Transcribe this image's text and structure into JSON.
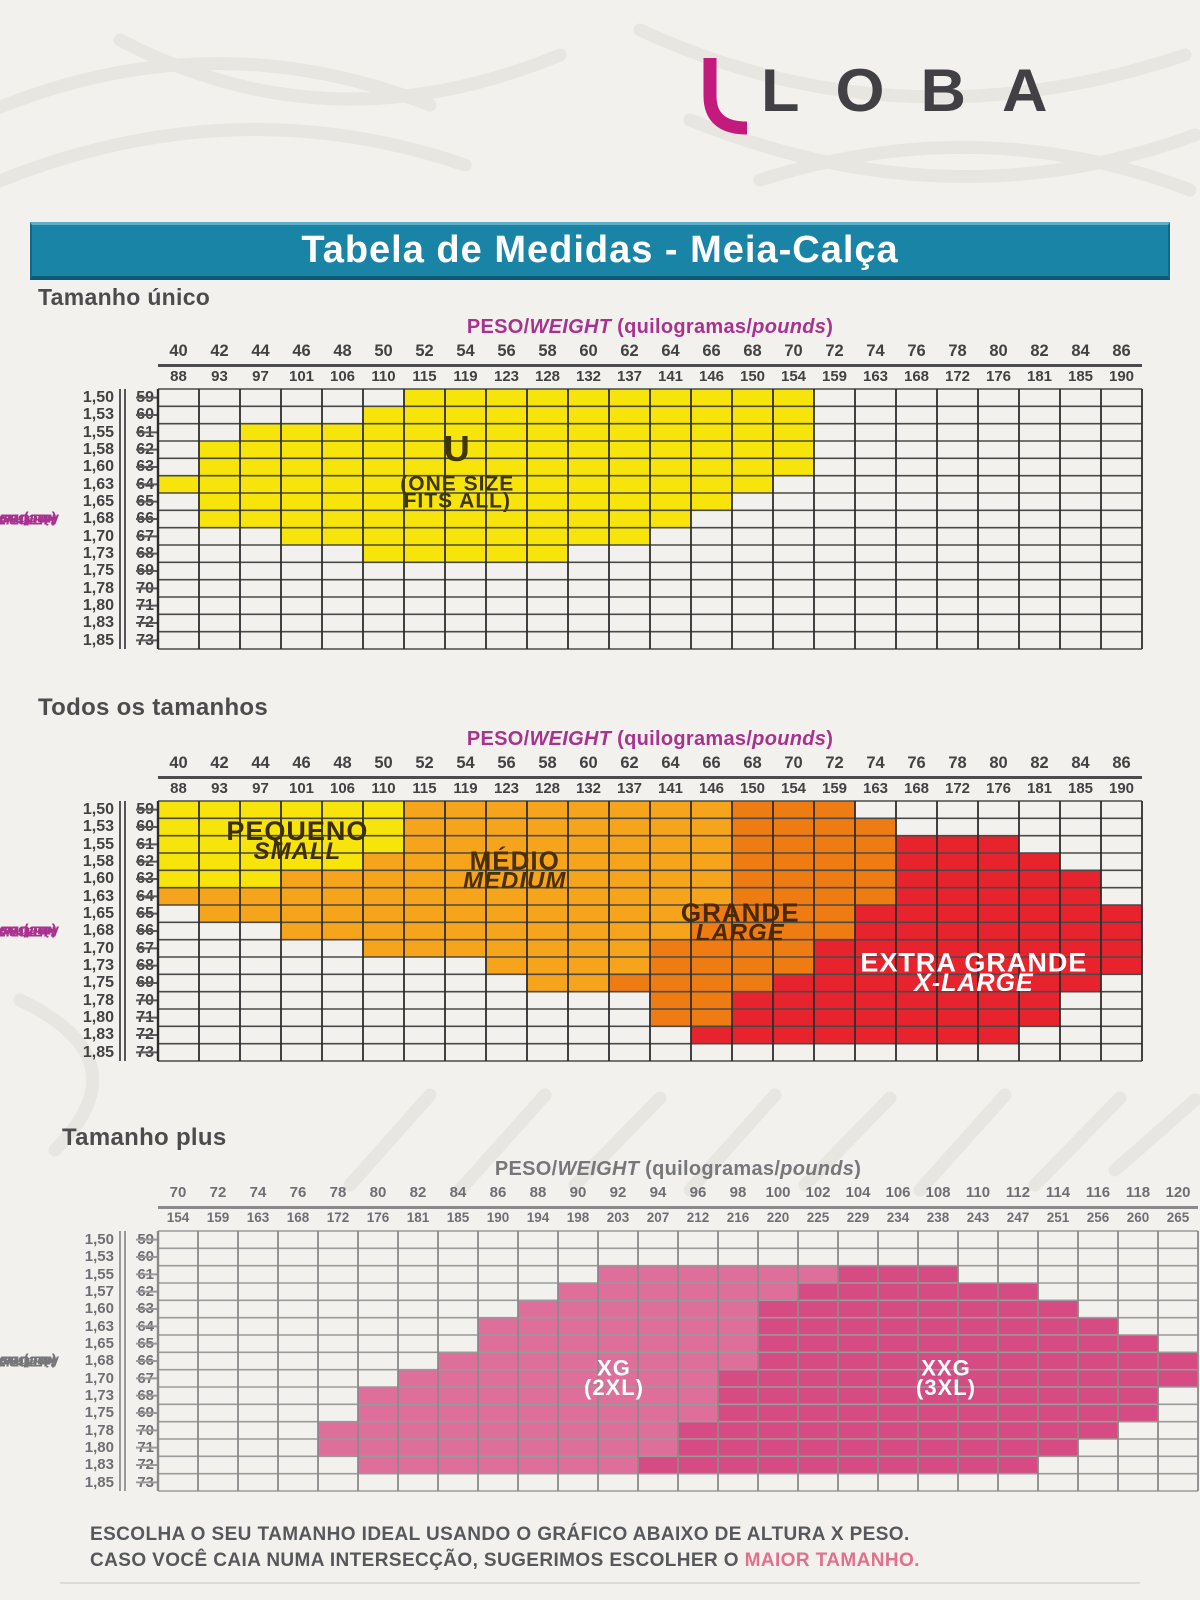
{
  "logo": {
    "text": "LOBA",
    "text_color": "#414045",
    "swoosh_color": "#c4197d"
  },
  "title_bar": {
    "text": "Tabela de Medidas - Meia-Calça",
    "bg": "#1a84a6",
    "text_color": "#ffffff"
  },
  "footer": {
    "line1": "ESCOLHA O SEU TAMANHO IDEAL  USANDO O GRÁFICO ABAIXO DE ALTURA X PESO.",
    "line2_prefix": "CASO VOCÊ CAIA NUMA INTERSECÇÃO, SUGERIMOS ESCOLHER O ",
    "line2_accent": "MAIOR TAMANHO.",
    "accent_color": "#e0708c"
  },
  "chart_data": [
    {
      "type": "heatmap",
      "section_title": "Tamanho único",
      "weight_title_parts": [
        {
          "text": "PESO/"
        },
        {
          "text": "WEIGHT",
          "italic": true
        },
        {
          "text": " (quilogramas/"
        },
        {
          "text": "pounds",
          "italic": true
        },
        {
          "text": ")"
        }
      ],
      "height_title_parts": [
        {
          "text": "ALTURA/"
        },
        {
          "text": "HEIGHT",
          "italic": true
        },
        {
          "text": " (metros/"
        },
        {
          "text": "inches",
          "italic": true
        },
        {
          "text": ")"
        }
      ],
      "kg": [
        40,
        42,
        44,
        46,
        48,
        50,
        52,
        54,
        56,
        58,
        60,
        62,
        64,
        66,
        68,
        70,
        72,
        74,
        76,
        78,
        80,
        82,
        84,
        86
      ],
      "lbs": [
        88,
        93,
        97,
        101,
        106,
        110,
        115,
        119,
        123,
        128,
        132,
        137,
        141,
        146,
        150,
        154,
        159,
        163,
        168,
        172,
        176,
        181,
        185,
        190
      ],
      "meters": [
        "1,50",
        "1,53",
        "1,55",
        "1,58",
        "1,60",
        "1,63",
        "1,65",
        "1,68",
        "1,70",
        "1,73",
        "1,75",
        "1,78",
        "1,80",
        "1,83",
        "1,85"
      ],
      "inches": [
        59,
        60,
        61,
        62,
        63,
        64,
        65,
        66,
        67,
        68,
        69,
        70,
        71,
        72,
        73
      ],
      "axis_title_color": "#a8338f",
      "tick_color": "#424242",
      "grid_h_color": "#4a4a4a",
      "grid_v_color": "#2e2e2e",
      "stub_color": "#5a5a5a",
      "regions": [
        {
          "name": "one-size-u",
          "color": "#f7e40b",
          "cells": {
            "59": [
              6,
              15
            ],
            "60": [
              5,
              15
            ],
            "61": [
              2,
              15
            ],
            "62": [
              1,
              15
            ],
            "63": [
              1,
              15
            ],
            "64": [
              0,
              14
            ],
            "65": [
              1,
              13
            ],
            "66": [
              1,
              12
            ],
            "67": [
              3,
              11
            ],
            "68": [
              5,
              9
            ]
          },
          "label": {
            "color": "#3f3600",
            "col": 7.3,
            "rows": [
              4.15,
              5.85,
              6.85
            ],
            "lines": [
              {
                "text": "U",
                "size": 36
              },
              {
                "text": "(ONE SIZE",
                "size": 21
              },
              {
                "text": "FITS ALL)",
                "size": 21
              }
            ]
          }
        }
      ]
    },
    {
      "type": "heatmap",
      "section_title": "Todos os tamanhos",
      "weight_title_parts": [
        {
          "text": "PESO/"
        },
        {
          "text": "WEIGHT",
          "italic": true
        },
        {
          "text": " (quilogramas/"
        },
        {
          "text": "pounds",
          "italic": true
        },
        {
          "text": ")"
        }
      ],
      "height_title_parts": [
        {
          "text": "ALTURA/"
        },
        {
          "text": "HEIGHT",
          "italic": true
        },
        {
          "text": " (metros/"
        },
        {
          "text": "inches",
          "italic": true
        },
        {
          "text": ")"
        }
      ],
      "kg": [
        40,
        42,
        44,
        46,
        48,
        50,
        52,
        54,
        56,
        58,
        60,
        62,
        64,
        66,
        68,
        70,
        72,
        74,
        76,
        78,
        80,
        82,
        84,
        86
      ],
      "lbs": [
        88,
        93,
        97,
        101,
        106,
        110,
        115,
        119,
        123,
        128,
        132,
        137,
        141,
        146,
        150,
        154,
        159,
        163,
        168,
        172,
        176,
        181,
        185,
        190
      ],
      "meters": [
        "1,50",
        "1,53",
        "1,55",
        "1,58",
        "1,60",
        "1,63",
        "1,65",
        "1,68",
        "1,70",
        "1,73",
        "1,75",
        "1,78",
        "1,80",
        "1,83",
        "1,85"
      ],
      "inches": [
        59,
        60,
        61,
        62,
        63,
        64,
        65,
        66,
        67,
        68,
        69,
        70,
        71,
        72,
        73
      ],
      "axis_title_color": "#a8338f",
      "tick_color": "#424242",
      "grid_h_color": "#4a4a4a",
      "grid_v_color": "#2e2e2e",
      "stub_color": "#5a5a5a",
      "regions": [
        {
          "name": "pequeno-small",
          "color": "#f7e40b",
          "cells": {
            "59": [
              0,
              5
            ],
            "60": [
              0,
              5
            ],
            "61": [
              0,
              5
            ],
            "62": [
              0,
              4
            ],
            "63": [
              0,
              2
            ]
          },
          "label": {
            "color": "#3e2e04",
            "col": 3.4,
            "rows": [
              2.25,
              3.35
            ],
            "lines": [
              {
                "text": "PEQUENO",
                "size": 27
              },
              {
                "text": "SMALL",
                "size": 24,
                "italic": true
              }
            ]
          }
        },
        {
          "name": "medio-medium",
          "color": "#f7a41d",
          "cells": {
            "59": [
              6,
              13
            ],
            "60": [
              6,
              13
            ],
            "61": [
              6,
              13
            ],
            "62": [
              5,
              13
            ],
            "63": [
              3,
              13
            ],
            "64": [
              0,
              13
            ],
            "65": [
              1,
              12
            ],
            "66": [
              3,
              12
            ],
            "67": [
              5,
              11
            ],
            "68": [
              8,
              11
            ],
            "69": [
              9,
              10
            ]
          },
          "label": {
            "color": "#4a3000",
            "col": 8.7,
            "rows": [
              3.95,
              5.05
            ],
            "lines": [
              {
                "text": "MÉDIO",
                "size": 26
              },
              {
                "text": "MEDIUM",
                "size": 24,
                "italic": true
              }
            ]
          }
        },
        {
          "name": "grande-large",
          "color": "#ef7b13",
          "cells": {
            "59": [
              14,
              16
            ],
            "60": [
              14,
              17
            ],
            "61": [
              14,
              17
            ],
            "62": [
              14,
              17
            ],
            "63": [
              14,
              17
            ],
            "64": [
              14,
              17
            ],
            "65": [
              13,
              16
            ],
            "66": [
              13,
              16
            ],
            "67": [
              12,
              15
            ],
            "68": [
              12,
              15
            ],
            "69": [
              11,
              14
            ],
            "70": [
              12,
              13
            ],
            "71": [
              12,
              13
            ]
          },
          "label": {
            "color": "#4a2800",
            "col": 14.2,
            "rows": [
              6.95,
              8.05
            ],
            "lines": [
              {
                "text": "GRANDE",
                "size": 26
              },
              {
                "text": "LARGE",
                "size": 24,
                "italic": true
              }
            ]
          }
        },
        {
          "name": "extra-grande-xlarge",
          "color": "#e7232e",
          "cells": {
            "61": [
              18,
              20
            ],
            "62": [
              18,
              21
            ],
            "63": [
              18,
              22
            ],
            "64": [
              18,
              22
            ],
            "65": [
              17,
              23
            ],
            "66": [
              17,
              23
            ],
            "67": [
              16,
              23
            ],
            "68": [
              16,
              23
            ],
            "69": [
              15,
              22
            ],
            "70": [
              14,
              21
            ],
            "71": [
              14,
              21
            ],
            "72": [
              13,
              20
            ]
          },
          "label": {
            "color": "#ffffff",
            "col": 19.9,
            "rows": [
              9.85,
              10.95
            ],
            "lines": [
              {
                "text": "EXTRA GRANDE",
                "size": 27
              },
              {
                "text": "X-LARGE",
                "size": 25,
                "italic": true
              }
            ]
          }
        }
      ]
    },
    {
      "type": "heatmap",
      "section_title": "Tamanho plus",
      "weight_title_parts": [
        {
          "text": "PESO/"
        },
        {
          "text": "WEIGHT",
          "italic": true
        },
        {
          "text": " (quilogramas/"
        },
        {
          "text": "pounds",
          "italic": true
        },
        {
          "text": ")"
        }
      ],
      "height_title_parts": [
        {
          "text": "ALTURA/"
        },
        {
          "text": "HEIGHT",
          "italic": true
        },
        {
          "text": " (metros/"
        },
        {
          "text": "inches",
          "italic": true
        },
        {
          "text": ")"
        }
      ],
      "kg": [
        70,
        72,
        74,
        76,
        78,
        80,
        82,
        84,
        86,
        88,
        90,
        92,
        94,
        96,
        98,
        100,
        102,
        104,
        106,
        108,
        110,
        112,
        114,
        116,
        118,
        120
      ],
      "lbs": [
        154,
        159,
        163,
        168,
        172,
        176,
        181,
        185,
        190,
        194,
        198,
        203,
        207,
        212,
        216,
        220,
        225,
        229,
        234,
        238,
        243,
        247,
        251,
        256,
        260,
        265
      ],
      "meters": [
        "1,50",
        "1,53",
        "1,55",
        "1,57",
        "1,60",
        "1,63",
        "1,65",
        "1,68",
        "1,70",
        "1,73",
        "1,75",
        "1,78",
        "1,80",
        "1,83",
        "1,85"
      ],
      "inches": [
        59,
        60,
        61,
        62,
        63,
        64,
        65,
        66,
        67,
        68,
        69,
        70,
        71,
        72,
        73
      ],
      "axis_title_color": "#77777b",
      "tick_color": "#6f6f73",
      "grid_h_color": "#9a9a9a",
      "grid_v_color": "#8a8a8a",
      "stub_color": "#9a9a9a",
      "regions": [
        {
          "name": "xg-2xl",
          "color": "#de6f9b",
          "cells": {
            "61": [
              11,
              16
            ],
            "62": [
              10,
              15
            ],
            "63": [
              9,
              14
            ],
            "64": [
              8,
              14
            ],
            "65": [
              8,
              14
            ],
            "66": [
              7,
              14
            ],
            "67": [
              6,
              13
            ],
            "68": [
              5,
              13
            ],
            "69": [
              5,
              13
            ],
            "70": [
              4,
              12
            ],
            "71": [
              4,
              12
            ],
            "72": [
              5,
              11
            ]
          },
          "label": {
            "color": "#ffffff",
            "col": 11.4,
            "rows": [
              8.35,
              9.45
            ],
            "lines": [
              {
                "text": "XG",
                "size": 22
              },
              {
                "text": "(2XL)",
                "size": 22
              }
            ]
          }
        },
        {
          "name": "xxg-3xl",
          "color": "#d74b84",
          "cells": {
            "61": [
              17,
              19
            ],
            "62": [
              16,
              21
            ],
            "63": [
              15,
              22
            ],
            "64": [
              15,
              23
            ],
            "65": [
              15,
              24
            ],
            "66": [
              15,
              25
            ],
            "67": [
              14,
              25
            ],
            "68": [
              14,
              24
            ],
            "69": [
              14,
              24
            ],
            "70": [
              13,
              23
            ],
            "71": [
              13,
              22
            ],
            "72": [
              12,
              21
            ]
          },
          "label": {
            "color": "#ffffff",
            "col": 19.7,
            "rows": [
              8.35,
              9.45
            ],
            "lines": [
              {
                "text": "XXG",
                "size": 22
              },
              {
                "text": "(3XL)",
                "size": 22
              }
            ]
          }
        }
      ]
    }
  ]
}
